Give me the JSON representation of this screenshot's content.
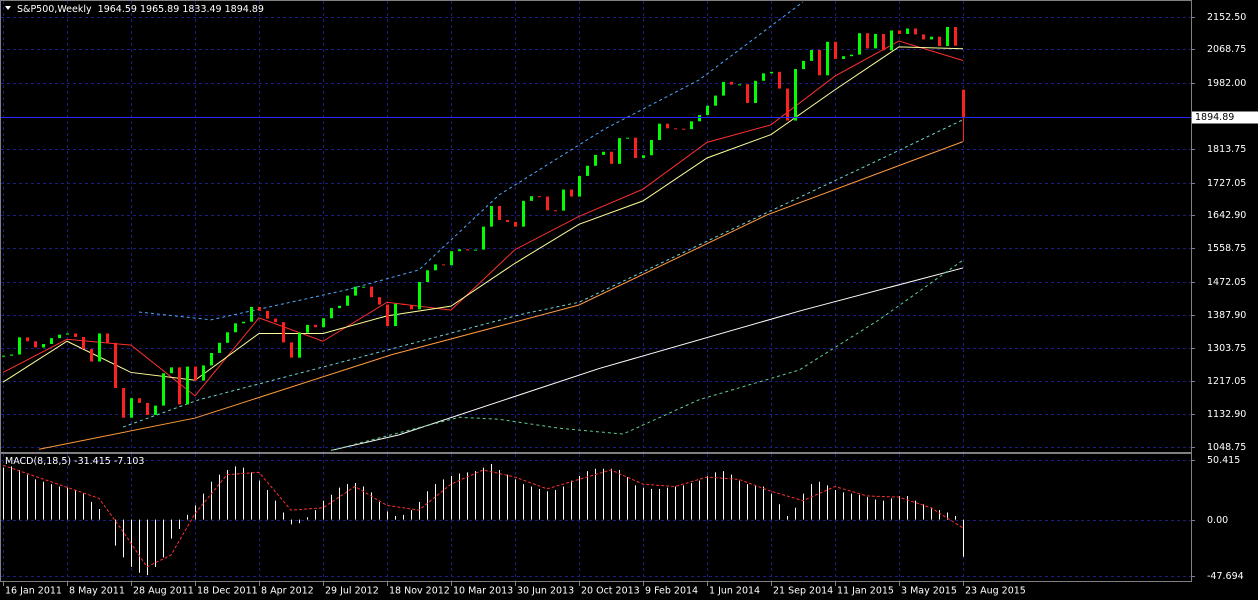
{
  "chart_data": [
    {
      "type": "candlestick",
      "title": "S&P500,Weekly",
      "categories": [
        "16 Jan 2011",
        null,
        null,
        null,
        null,
        null,
        null,
        null,
        "8 May 2011",
        null,
        null,
        null,
        null,
        null,
        null,
        null,
        "28 Aug 2011",
        null,
        null,
        null,
        null,
        null,
        null,
        null,
        "18 Dec 2011",
        null,
        null,
        null,
        null,
        null,
        null,
        null,
        "8 Apr 2012",
        null,
        null,
        null,
        null,
        null,
        null,
        null,
        "29 Jul 2012",
        null,
        null,
        null,
        null,
        null,
        null,
        null,
        "18 Nov 2012",
        null,
        null,
        null,
        null,
        null,
        null,
        null,
        "10 Mar 2013",
        null,
        null,
        null,
        null,
        null,
        null,
        null,
        "30 Jun 2013",
        null,
        null,
        null,
        null,
        null,
        null,
        null,
        "20 Oct 2013",
        null,
        null,
        null,
        null,
        null,
        null,
        null,
        "9 Feb 2014",
        null,
        null,
        null,
        null,
        null,
        null,
        null,
        "1 Jun 2014",
        null,
        null,
        null,
        null,
        null,
        null,
        null,
        "21 Sep 2014",
        null,
        null,
        null,
        null,
        null,
        null,
        null,
        "11 Jan 2015",
        null,
        null,
        null,
        null,
        null,
        null,
        null,
        "3 May 2015",
        null,
        null,
        null,
        null,
        null,
        null,
        null,
        "23 Aug 2015"
      ],
      "values": [
        1283,
        1286,
        1330,
        1320,
        1304,
        1313,
        1328,
        1337,
        1340,
        1331,
        1300,
        1268,
        1340,
        1316,
        1200,
        1124,
        1174,
        1162,
        1131,
        1155,
        1238,
        1253,
        1158,
        1255,
        1219,
        1258,
        1290,
        1316,
        1343,
        1366,
        1370,
        1408,
        1398,
        1378,
        1369,
        1317,
        1278,
        1342,
        1362,
        1356,
        1379,
        1405,
        1411,
        1437,
        1460,
        1460,
        1433,
        1414,
        1359,
        1416,
        1413,
        1402,
        1472,
        1502,
        1517,
        1515,
        1551,
        1556,
        1553,
        1555,
        1614,
        1667,
        1631,
        1626,
        1614,
        1680,
        1692,
        1691,
        1656,
        1655,
        1709,
        1691,
        1744,
        1770,
        1798,
        1806,
        1775,
        1841,
        1842,
        1790,
        1797,
        1836,
        1878,
        1866,
        1865,
        1864,
        1884,
        1900,
        1924,
        1950,
        1985,
        1978,
        1979,
        1931,
        1988,
        2007,
        2011,
        1968,
        1886,
        2018,
        2039,
        2067,
        2002,
        2088,
        2044,
        2051,
        2055,
        2110,
        2071,
        2108,
        2066,
        2117,
        2108,
        2122,
        2107,
        2094,
        2101,
        2077,
        2126,
        2078,
        1894.89
      ],
      "last_bar": {
        "open": 1964.59,
        "high": 1965.89,
        "low": 1833.49
      },
      "up_color": "#00ff00",
      "down_color": "#ff2020",
      "price_line_color": "#2828ff",
      "ylim": [
        1036,
        2190
      ],
      "yticks": [
        {
          "value": 2152.5,
          "label": "2152.50"
        },
        2068.75,
        {
          "value": 1982,
          "label": "1982.00"
        },
        1813.75,
        1727.05,
        {
          "value": 1642.9,
          "label": "1642.90"
        },
        1558.75,
        1472.05,
        {
          "value": 1387.9,
          "label": "1387.90"
        },
        1303.75,
        1217.05,
        {
          "value": 1132.9,
          "label": "1132.90"
        },
        1048.75
      ],
      "grid": true,
      "overlays": [
        {
          "color": "#ff3030",
          "dashed": false,
          "x": [
            0,
            8,
            16,
            24,
            32,
            40,
            48,
            56,
            64,
            72,
            80,
            88,
            96,
            104,
            112,
            120
          ],
          "values": [
            1240,
            1325,
            1310,
            1180,
            1380,
            1320,
            1420,
            1400,
            1555,
            1640,
            1710,
            1830,
            1875,
            2000,
            2090,
            2040
          ]
        },
        {
          "color": "#ffff99",
          "dashed": false,
          "x": [
            0,
            8,
            16,
            24,
            32,
            40,
            48,
            56,
            64,
            72,
            80,
            88,
            96,
            104,
            112,
            120
          ],
          "values": [
            1215,
            1320,
            1240,
            1220,
            1340,
            1340,
            1385,
            1410,
            1520,
            1620,
            1680,
            1790,
            1850,
            1965,
            2075,
            2070
          ]
        },
        {
          "color": "#ff9a3c",
          "dashed": false,
          "x": [
            4.5,
            24,
            48.5,
            72,
            95.5,
            120
          ],
          "values": [
            1043,
            1123,
            1285,
            1413,
            1644,
            1832
          ]
        },
        {
          "color": "#ffffff",
          "dashed": false,
          "x": [
            41,
            49.5,
            74.5,
            100,
            120
          ],
          "values": [
            1040,
            1080,
            1250,
            1400,
            1508
          ]
        },
        {
          "color": "#4ea8ff",
          "dashed": true,
          "x": [
            17,
            26,
            43,
            52,
            62,
            75,
            87,
            100
          ],
          "values": [
            1395,
            1375,
            1452,
            1503,
            1695,
            1862,
            1990,
            2190
          ]
        },
        {
          "color": "#6fd3d3",
          "dashed": true,
          "x": [
            15,
            24.5,
            48.5,
            65,
            72,
            95.5,
            110,
            120
          ],
          "values": [
            1100,
            1170,
            1300,
            1390,
            1420,
            1650,
            1790,
            1888
          ]
        },
        {
          "color": "#5fcf8f",
          "dashed": true,
          "x": [
            41,
            57,
            62,
            69.5,
            77.5,
            87,
            99.5,
            109.5,
            120
          ],
          "values": [
            1040,
            1125,
            1120,
            1097,
            1082,
            1170,
            1246,
            1375,
            1528
          ]
        }
      ]
    },
    {
      "type": "macd",
      "title": "MACD(8,18,5)",
      "color": "#ffffff",
      "values": [
        44,
        45,
        42,
        38,
        34,
        32,
        30,
        28,
        27,
        25,
        22,
        15,
        9,
        0,
        -22,
        -32,
        -40,
        -45,
        -47,
        -40,
        -32,
        -16,
        -8,
        4,
        12,
        22,
        32,
        38,
        42,
        45,
        44,
        40,
        33,
        25,
        16,
        6,
        -4,
        -3,
        2,
        8,
        16,
        21,
        27,
        30,
        31,
        28,
        23,
        15,
        7,
        3,
        4,
        8,
        15,
        24,
        30,
        34,
        37,
        39,
        40,
        41,
        44,
        47,
        42,
        38,
        34,
        30,
        28,
        26,
        24,
        25,
        28,
        33,
        37,
        41,
        43,
        43,
        43,
        42,
        36,
        29,
        27,
        26,
        26,
        27,
        28,
        29,
        31,
        33,
        37,
        40,
        41,
        38,
        33,
        30,
        29,
        28,
        22,
        13,
        3,
        10,
        22,
        30,
        32,
        29,
        25,
        23,
        22,
        21,
        19,
        17,
        16,
        18,
        20,
        20,
        16,
        13,
        10,
        8,
        6,
        3,
        -31.415
      ],
      "signal": {
        "color": "#ff3030",
        "x": [
          0,
          6,
          12,
          15,
          18,
          21,
          24,
          28,
          32,
          36,
          40,
          44,
          48,
          52,
          56,
          60,
          64,
          68,
          72,
          76,
          80,
          84,
          88,
          92,
          96,
          100,
          104,
          108,
          112,
          116,
          120
        ],
        "values": [
          46,
          32,
          18,
          -10,
          -40,
          -30,
          5,
          38,
          40,
          8,
          10,
          28,
          12,
          8,
          30,
          42,
          36,
          26,
          34,
          42,
          30,
          28,
          36,
          34,
          24,
          16,
          28,
          20,
          19,
          10,
          -7.103
        ]
      },
      "ylim": [
        -52.8,
        55.5
      ],
      "yticks": [
        50.415,
        {
          "value": 0,
          "label": "0.00"
        },
        -47.694
      ],
      "grid": true
    }
  ]
}
